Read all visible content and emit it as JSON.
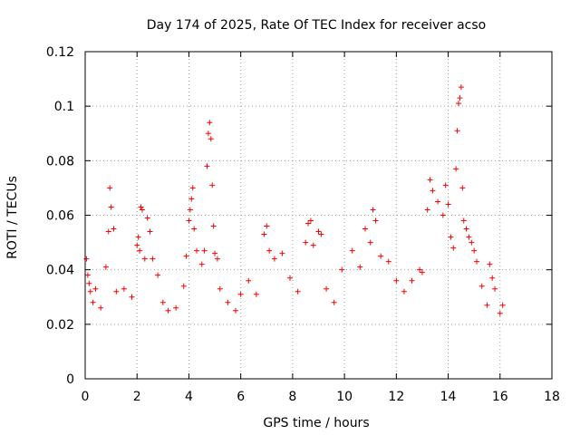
{
  "chart_data": {
    "type": "scatter",
    "title": "Day 174 of 2025, Rate Of TEC Index for receiver acso",
    "xlabel": "GPS time / hours",
    "ylabel": "ROTI / TECUs",
    "xlim": [
      0,
      18
    ],
    "ylim": [
      0,
      0.12
    ],
    "x_ticks": [
      0,
      2,
      4,
      6,
      8,
      10,
      12,
      14,
      16,
      18
    ],
    "x_tick_labels": [
      "0",
      "2",
      "4",
      "6",
      "8",
      "10",
      "12",
      "14",
      "16",
      "18"
    ],
    "y_ticks": [
      0,
      0.02,
      0.04,
      0.06,
      0.08,
      0.1,
      0.12
    ],
    "y_tick_labels": [
      "0",
      "0.02",
      "0.04",
      "0.06",
      "0.08",
      "0.1",
      "0.12"
    ],
    "grid": true,
    "marker": "plus",
    "color": "#ff0000",
    "series": [
      {
        "points": [
          [
            0.05,
            0.044
          ],
          [
            0.1,
            0.038
          ],
          [
            0.15,
            0.035
          ],
          [
            0.2,
            0.032
          ],
          [
            0.3,
            0.028
          ],
          [
            0.4,
            0.033
          ],
          [
            0.6,
            0.026
          ],
          [
            0.8,
            0.041
          ],
          [
            0.9,
            0.054
          ],
          [
            0.95,
            0.07
          ],
          [
            1.0,
            0.063
          ],
          [
            1.1,
            0.055
          ],
          [
            1.2,
            0.032
          ],
          [
            1.5,
            0.033
          ],
          [
            1.8,
            0.03
          ],
          [
            2.0,
            0.049
          ],
          [
            2.05,
            0.052
          ],
          [
            2.1,
            0.047
          ],
          [
            2.15,
            0.063
          ],
          [
            2.2,
            0.062
          ],
          [
            2.3,
            0.044
          ],
          [
            2.4,
            0.059
          ],
          [
            2.5,
            0.054
          ],
          [
            2.6,
            0.044
          ],
          [
            2.8,
            0.038
          ],
          [
            3.0,
            0.028
          ],
          [
            3.2,
            0.025
          ],
          [
            3.5,
            0.026
          ],
          [
            3.8,
            0.034
          ],
          [
            3.9,
            0.045
          ],
          [
            4.0,
            0.058
          ],
          [
            4.05,
            0.062
          ],
          [
            4.1,
            0.066
          ],
          [
            4.15,
            0.07
          ],
          [
            4.2,
            0.055
          ],
          [
            4.3,
            0.047
          ],
          [
            4.5,
            0.042
          ],
          [
            4.6,
            0.047
          ],
          [
            4.7,
            0.078
          ],
          [
            4.75,
            0.09
          ],
          [
            4.8,
            0.094
          ],
          [
            4.85,
            0.088
          ],
          [
            4.9,
            0.071
          ],
          [
            4.95,
            0.056
          ],
          [
            5.0,
            0.046
          ],
          [
            5.1,
            0.044
          ],
          [
            5.2,
            0.033
          ],
          [
            5.5,
            0.028
          ],
          [
            5.8,
            0.025
          ],
          [
            6.0,
            0.031
          ],
          [
            6.3,
            0.036
          ],
          [
            6.6,
            0.031
          ],
          [
            6.9,
            0.053
          ],
          [
            7.0,
            0.056
          ],
          [
            7.1,
            0.047
          ],
          [
            7.3,
            0.044
          ],
          [
            7.6,
            0.046
          ],
          [
            7.9,
            0.037
          ],
          [
            8.2,
            0.032
          ],
          [
            8.5,
            0.05
          ],
          [
            8.6,
            0.057
          ],
          [
            8.7,
            0.058
          ],
          [
            8.8,
            0.049
          ],
          [
            9.0,
            0.054
          ],
          [
            9.1,
            0.053
          ],
          [
            9.3,
            0.033
          ],
          [
            9.6,
            0.028
          ],
          [
            9.9,
            0.04
          ],
          [
            10.3,
            0.047
          ],
          [
            10.6,
            0.041
          ],
          [
            10.8,
            0.055
          ],
          [
            11.0,
            0.05
          ],
          [
            11.1,
            0.062
          ],
          [
            11.2,
            0.058
          ],
          [
            11.4,
            0.045
          ],
          [
            11.7,
            0.043
          ],
          [
            12.0,
            0.036
          ],
          [
            12.3,
            0.032
          ],
          [
            12.6,
            0.036
          ],
          [
            12.9,
            0.04
          ],
          [
            13.0,
            0.039
          ],
          [
            13.2,
            0.062
          ],
          [
            13.3,
            0.073
          ],
          [
            13.4,
            0.069
          ],
          [
            13.6,
            0.065
          ],
          [
            13.8,
            0.06
          ],
          [
            13.9,
            0.071
          ],
          [
            14.0,
            0.064
          ],
          [
            14.1,
            0.052
          ],
          [
            14.2,
            0.048
          ],
          [
            14.3,
            0.077
          ],
          [
            14.35,
            0.091
          ],
          [
            14.4,
            0.101
          ],
          [
            14.45,
            0.103
          ],
          [
            14.5,
            0.107
          ],
          [
            14.55,
            0.07
          ],
          [
            14.6,
            0.058
          ],
          [
            14.7,
            0.055
          ],
          [
            14.8,
            0.052
          ],
          [
            14.9,
            0.05
          ],
          [
            15.0,
            0.047
          ],
          [
            15.1,
            0.043
          ],
          [
            15.3,
            0.034
          ],
          [
            15.5,
            0.027
          ],
          [
            15.6,
            0.042
          ],
          [
            15.7,
            0.037
          ],
          [
            15.8,
            0.033
          ],
          [
            16.0,
            0.024
          ],
          [
            16.1,
            0.027
          ]
        ]
      }
    ]
  }
}
